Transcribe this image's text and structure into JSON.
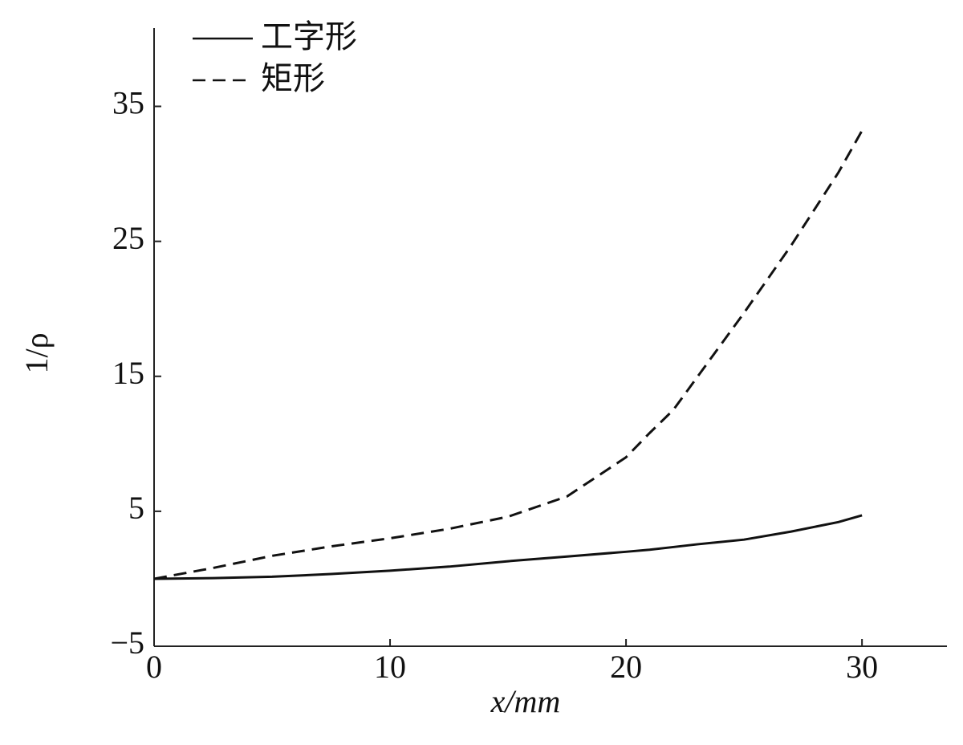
{
  "chart_data": {
    "type": "line",
    "x_label": "x/mm",
    "y_label": "1/ρ",
    "x": [
      0,
      2.5,
      5,
      7.5,
      10,
      12.5,
      15,
      17.5,
      20,
      21,
      22,
      23,
      25,
      27,
      29,
      30
    ],
    "series": [
      {
        "name": "工字形",
        "color": "#111111",
        "dash": "solid",
        "values": [
          0,
          0.05,
          0.15,
          0.35,
          0.6,
          0.9,
          1.3,
          1.65,
          2.0,
          2.15,
          2.35,
          2.55,
          2.9,
          3.5,
          4.2,
          4.7
        ]
      },
      {
        "name": "矩形",
        "color": "#111111",
        "dash": "dashed",
        "values": [
          0,
          0.8,
          1.7,
          2.4,
          3.0,
          3.7,
          4.6,
          6.1,
          9.0,
          10.8,
          12.5,
          14.9,
          19.7,
          24.7,
          30.1,
          33.2
        ]
      }
    ],
    "xlim": [
      0,
      33.6
    ],
    "xticks": [
      0,
      10,
      20,
      30
    ],
    "ylim": [
      -5,
      40.8
    ],
    "yticks": [
      {
        "value": -5,
        "label": "−5"
      },
      5,
      15,
      25,
      35
    ],
    "legend": "upper left",
    "grid": false
  }
}
